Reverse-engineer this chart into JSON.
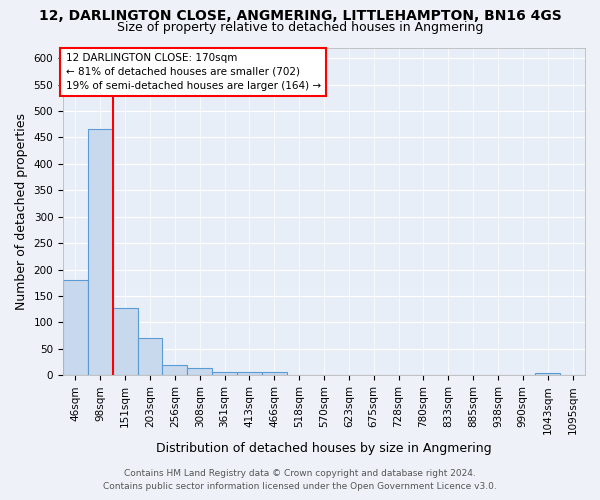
{
  "title": "12, DARLINGTON CLOSE, ANGMERING, LITTLEHAMPTON, BN16 4GS",
  "subtitle": "Size of property relative to detached houses in Angmering",
  "xlabel": "Distribution of detached houses by size in Angmering",
  "ylabel": "Number of detached properties",
  "categories": [
    "46sqm",
    "98sqm",
    "151sqm",
    "203sqm",
    "256sqm",
    "308sqm",
    "361sqm",
    "413sqm",
    "466sqm",
    "518sqm",
    "570sqm",
    "623sqm",
    "675sqm",
    "728sqm",
    "780sqm",
    "833sqm",
    "885sqm",
    "938sqm",
    "990sqm",
    "1043sqm",
    "1095sqm"
  ],
  "values": [
    180,
    465,
    128,
    70,
    20,
    14,
    7,
    6,
    6,
    0,
    0,
    0,
    0,
    0,
    0,
    0,
    0,
    0,
    0,
    5,
    0
  ],
  "bar_color": "#c9d9ed",
  "bar_edge_color": "#5b9bd5",
  "red_line_x": 2.0,
  "red_line_color": "#ff0000",
  "annotation_box_text": "12 DARLINGTON CLOSE: 170sqm\n← 81% of detached houses are smaller (702)\n19% of semi-detached houses are larger (164) →",
  "annotation_box_color": "#ff0000",
  "ylim": [
    0,
    620
  ],
  "yticks": [
    0,
    50,
    100,
    150,
    200,
    250,
    300,
    350,
    400,
    450,
    500,
    550,
    600
  ],
  "footer_line1": "Contains HM Land Registry data © Crown copyright and database right 2024.",
  "footer_line2": "Contains public sector information licensed under the Open Government Licence v3.0.",
  "bg_color": "#eef2f8",
  "plot_bg_color": "#e8eef8",
  "grid_color": "#ffffff",
  "title_fontsize": 10,
  "subtitle_fontsize": 9,
  "axis_label_fontsize": 9,
  "tick_fontsize": 7.5,
  "footer_fontsize": 6.5
}
